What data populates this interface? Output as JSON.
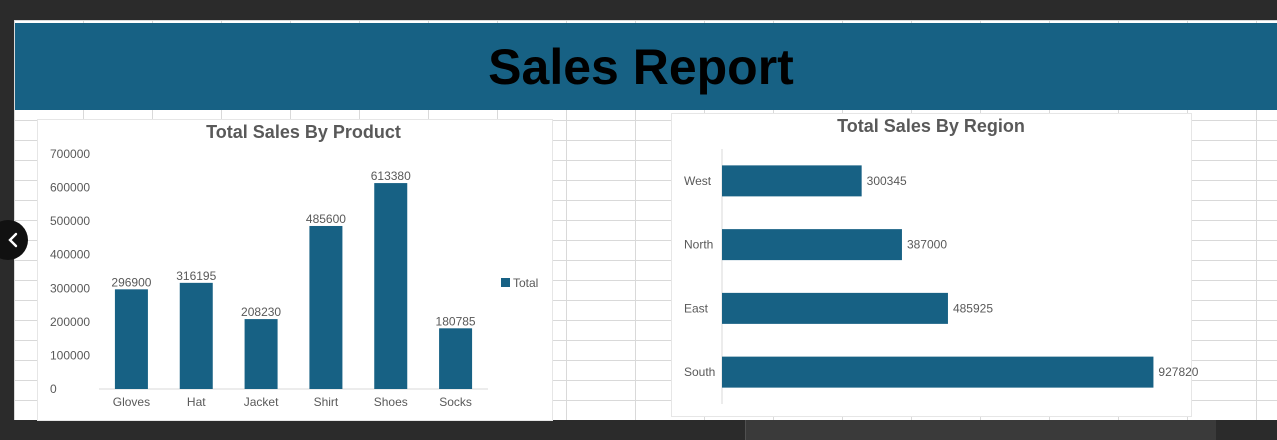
{
  "report": {
    "title": "Sales Report"
  },
  "colors": {
    "banner": "#176184",
    "bar": "#176184",
    "text": "#595959",
    "axis_line": "#d9d9d9"
  },
  "icons": {
    "nav_left": "chevron-left-icon"
  },
  "chart_data": [
    {
      "id": "product",
      "type": "bar",
      "title": "Total Sales By Product",
      "xlabel": "",
      "ylabel": "",
      "categories": [
        "Gloves",
        "Hat",
        "Jacket",
        "Shirt",
        "Shoes",
        "Socks"
      ],
      "series": [
        {
          "name": "Total",
          "values": [
            296900,
            316195,
            208230,
            485600,
            613380,
            180785
          ]
        }
      ],
      "y_ticks": [
        "0",
        "100000",
        "200000",
        "300000",
        "400000",
        "500000",
        "600000",
        "700000"
      ],
      "ylim": [
        0,
        700000
      ],
      "grid": false,
      "legend": "right",
      "data_labels": true
    },
    {
      "id": "region",
      "type": "bar",
      "orientation": "horizontal",
      "title": "Total Sales By Region",
      "xlabel": "",
      "ylabel": "",
      "categories": [
        "West",
        "North",
        "East",
        "South"
      ],
      "series": [
        {
          "values": [
            300345,
            387000,
            485925,
            927820
          ]
        }
      ],
      "xlim": [
        0,
        1000000
      ],
      "grid": false,
      "legend": "none",
      "data_labels": true
    }
  ]
}
